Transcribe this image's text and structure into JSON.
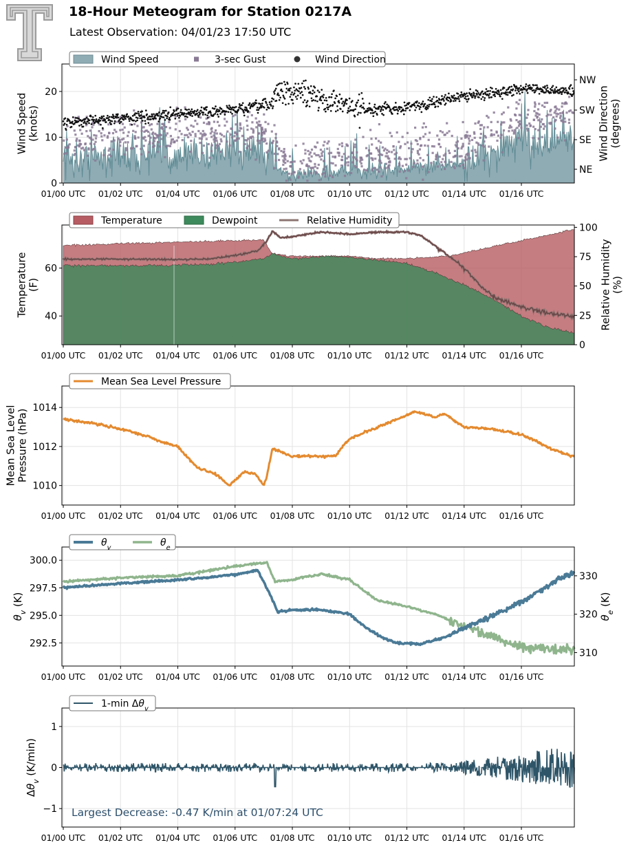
{
  "header": {
    "title": "18-Hour Meteogram for Station 0217A",
    "subtitle": "Latest Observation: 04/01/23 17:50 UTC"
  },
  "colors": {
    "wind_speed": "#8fabb3",
    "wind_speed_line": "#5f8b94",
    "gust": "#8a7a95",
    "wind_dir": "#111111",
    "temperature": "#b65c62",
    "dewpoint": "#3d8a5c",
    "rh": "#8c7471",
    "mslp": "#e48a2f",
    "theta_v": "#4a7a96",
    "theta_e": "#8fb58d",
    "dtheta": "#2e5568",
    "annotation": "#2b4e6b"
  },
  "chart_data": [
    {
      "type": "area",
      "id": "wind",
      "ylabel": "Wind Speed\n(knots)",
      "ylabel_right": "Wind Direction\n(degrees)",
      "ylim": [
        0,
        26
      ],
      "yticks": [
        0,
        10,
        20
      ],
      "ytick_labels": [
        "0",
        "10",
        "20"
      ],
      "y2_tick_labels": [
        "NE",
        "SE",
        "SW",
        "NW"
      ],
      "xlabels": [
        "01/00 UTC",
        "01/02 UTC",
        "01/04 UTC",
        "01/06 UTC",
        "01/08 UTC",
        "01/10 UTC",
        "01/12 UTC",
        "01/14 UTC",
        "01/16 UTC"
      ],
      "legend": [
        "Wind Speed",
        "3-sec Gust",
        "Wind Direction"
      ],
      "legend_position": "top-left",
      "grid": true,
      "series": [
        {
          "key": "speed_mean",
          "points": [
            [
              0,
              5
            ],
            [
              2,
              6
            ],
            [
              4,
              6.5
            ],
            [
              6,
              6.5
            ],
            [
              7.3,
              6
            ],
            [
              7.8,
              1.8
            ],
            [
              9,
              2
            ],
            [
              10,
              2.4
            ],
            [
              12,
              3.2
            ],
            [
              14,
              4
            ],
            [
              15,
              6.5
            ],
            [
              16,
              8.5
            ],
            [
              17.8,
              9
            ]
          ]
        },
        {
          "key": "gust_mean",
          "points": [
            [
              0,
              9
            ],
            [
              2,
              10.5
            ],
            [
              4,
              11
            ],
            [
              6,
              11
            ],
            [
              7.3,
              10
            ],
            [
              7.8,
              4
            ],
            [
              9,
              4.5
            ],
            [
              10,
              5.5
            ],
            [
              12,
              7
            ],
            [
              14,
              8
            ],
            [
              15,
              11
            ],
            [
              16,
              14
            ],
            [
              17.8,
              15
            ]
          ]
        },
        {
          "key": "direction_mean",
          "points": [
            [
              0,
              13
            ],
            [
              2,
              14.2
            ],
            [
              4,
              15
            ],
            [
              6,
              16
            ],
            [
              7.2,
              17
            ],
            [
              7.5,
              20
            ],
            [
              8.5,
              19.5
            ],
            [
              9.5,
              17.5
            ],
            [
              10.5,
              16
            ],
            [
              12,
              16.5
            ],
            [
              14,
              19
            ],
            [
              16,
              20.5
            ],
            [
              17.8,
              20
            ]
          ]
        }
      ]
    },
    {
      "type": "area",
      "id": "temperature",
      "ylabel": "Temperature\n(F)",
      "ylabel_right": "Relative Humidity\n(%)",
      "ylim": [
        28,
        78
      ],
      "yticks": [
        40,
        60
      ],
      "ytick_labels": [
        "40",
        "60"
      ],
      "y2lim": [
        0,
        102
      ],
      "y2ticks": [
        0,
        25,
        50,
        75,
        100
      ],
      "y2_tick_labels": [
        "0",
        "25",
        "50",
        "75",
        "100"
      ],
      "xlabels": [
        "01/00 UTC",
        "01/02 UTC",
        "01/04 UTC",
        "01/06 UTC",
        "01/08 UTC",
        "01/10 UTC",
        "01/12 UTC",
        "01/14 UTC",
        "01/16 UTC"
      ],
      "legend": [
        "Temperature",
        "Dewpoint",
        "Relative Humidity"
      ],
      "legend_position": "top-left",
      "grid": true,
      "series": [
        {
          "name": "Temperature",
          "points": [
            [
              0,
              69.5
            ],
            [
              3,
              70.5
            ],
            [
              6,
              71.5
            ],
            [
              7,
              71.8
            ],
            [
              7.3,
              66
            ],
            [
              8,
              65
            ],
            [
              10,
              65
            ],
            [
              11,
              64
            ],
            [
              12,
              64
            ],
            [
              13.5,
              65
            ],
            [
              15,
              69
            ],
            [
              17.8,
              76
            ]
          ]
        },
        {
          "name": "Dewpoint",
          "points": [
            [
              0,
              61
            ],
            [
              3,
              61
            ],
            [
              5,
              61.5
            ],
            [
              6,
              62.5
            ],
            [
              7,
              64
            ],
            [
              7.3,
              66
            ],
            [
              8,
              64
            ],
            [
              9.5,
              65
            ],
            [
              10.5,
              64
            ],
            [
              12,
              62
            ],
            [
              13,
              58
            ],
            [
              14,
              53
            ],
            [
              15,
              47
            ],
            [
              16,
              40
            ],
            [
              17,
              35
            ],
            [
              17.8,
              33
            ]
          ]
        },
        {
          "name": "Relative Humidity",
          "points": [
            [
              0,
              73
            ],
            [
              2,
              73
            ],
            [
              4,
              72.5
            ],
            [
              5,
              73
            ],
            [
              6,
              76
            ],
            [
              6.8,
              80
            ],
            [
              7.1,
              88
            ],
            [
              7.3,
              97
            ],
            [
              7.6,
              91
            ],
            [
              8,
              92
            ],
            [
              9,
              96
            ],
            [
              10,
              94
            ],
            [
              11,
              96
            ],
            [
              12,
              96
            ],
            [
              12.5,
              93
            ],
            [
              13,
              84
            ],
            [
              13.5,
              75
            ],
            [
              14,
              65
            ],
            [
              14.5,
              52
            ],
            [
              15,
              41
            ],
            [
              16,
              32
            ],
            [
              17,
              27
            ],
            [
              17.8,
              24
            ]
          ]
        }
      ]
    },
    {
      "type": "line",
      "id": "pressure",
      "ylabel": "Mean Sea Level\nPressure (hPa)",
      "ylim": [
        1009,
        1015.1
      ],
      "yticks": [
        1010,
        1012,
        1014
      ],
      "ytick_labels": [
        "1010",
        "1012",
        "1014"
      ],
      "xlabels": [
        "01/00 UTC",
        "01/02 UTC",
        "01/04 UTC",
        "01/06 UTC",
        "01/08 UTC",
        "01/10 UTC",
        "01/12 UTC",
        "01/14 UTC",
        "01/16 UTC"
      ],
      "legend": [
        "Mean Sea Level Pressure"
      ],
      "legend_position": "top-left",
      "grid": true,
      "series": [
        {
          "name": "Mean Sea Level Pressure",
          "points": [
            [
              0,
              1013.4
            ],
            [
              1,
              1013.2
            ],
            [
              2,
              1012.9
            ],
            [
              3,
              1012.5
            ],
            [
              3.5,
              1012.2
            ],
            [
              4,
              1012
            ],
            [
              4.3,
              1011.5
            ],
            [
              4.7,
              1010.9
            ],
            [
              5.3,
              1010.6
            ],
            [
              5.8,
              1010
            ],
            [
              6.3,
              1010.7
            ],
            [
              6.7,
              1010.6
            ],
            [
              7,
              1010
            ],
            [
              7.1,
              1010.4
            ],
            [
              7.3,
              1011.9
            ],
            [
              8,
              1011.5
            ],
            [
              9,
              1011.5
            ],
            [
              9.5,
              1011.5
            ],
            [
              10,
              1012.4
            ],
            [
              11,
              1013
            ],
            [
              12,
              1013.6
            ],
            [
              12.3,
              1013.8
            ],
            [
              13,
              1013.5
            ],
            [
              13.3,
              1013.7
            ],
            [
              14,
              1013
            ],
            [
              15,
              1012.9
            ],
            [
              16,
              1012.6
            ],
            [
              16.5,
              1012.3
            ],
            [
              17,
              1011.9
            ],
            [
              17.8,
              1011.5
            ]
          ]
        }
      ]
    },
    {
      "type": "line",
      "id": "theta",
      "ylabel": "θv (K)",
      "ylabel_right": "θe (K)",
      "ylim": [
        290.4,
        301.2
      ],
      "yticks": [
        292.5,
        295.0,
        297.5,
        300.0
      ],
      "ytick_labels": [
        "292.5",
        "295.0",
        "297.5",
        "300.0"
      ],
      "y2lim": [
        306.5,
        337.5
      ],
      "y2ticks": [
        310,
        320,
        330
      ],
      "y2_tick_labels": [
        "310",
        "320",
        "330"
      ],
      "xlabels": [
        "01/00 UTC",
        "01/02 UTC",
        "01/04 UTC",
        "01/06 UTC",
        "01/08 UTC",
        "01/10 UTC",
        "01/12 UTC",
        "01/14 UTC",
        "01/16 UTC"
      ],
      "legend": [
        "θv",
        "θe"
      ],
      "legend_position": "top-left",
      "grid": true,
      "series": [
        {
          "name": "θv",
          "points": [
            [
              0,
              297.5
            ],
            [
              2,
              297.9
            ],
            [
              4,
              298.2
            ],
            [
              6,
              298.7
            ],
            [
              6.8,
              299.1
            ],
            [
              7.2,
              297
            ],
            [
              7.5,
              295.3
            ],
            [
              8,
              295.5
            ],
            [
              9,
              295.5
            ],
            [
              10,
              295.1
            ],
            [
              10.5,
              294
            ],
            [
              11,
              293.2
            ],
            [
              11.6,
              292.5
            ],
            [
              12.5,
              292.4
            ],
            [
              13.3,
              293
            ],
            [
              14,
              293.8
            ],
            [
              15,
              295
            ],
            [
              16,
              296.2
            ],
            [
              17,
              297.8
            ],
            [
              17.8,
              298.9
            ]
          ]
        },
        {
          "name": "θe",
          "points": [
            [
              0,
              328.5
            ],
            [
              2,
              329.5
            ],
            [
              4,
              330
            ],
            [
              6,
              332.5
            ],
            [
              7.1,
              333.5
            ],
            [
              7.4,
              328.5
            ],
            [
              8,
              329
            ],
            [
              9,
              330.5
            ],
            [
              10,
              329
            ],
            [
              10.5,
              326
            ],
            [
              11,
              323.5
            ],
            [
              12,
              322
            ],
            [
              13,
              320
            ],
            [
              14,
              317
            ],
            [
              15,
              314
            ],
            [
              16,
              311.5
            ],
            [
              17,
              311
            ],
            [
              17.8,
              311
            ]
          ]
        }
      ]
    },
    {
      "type": "line",
      "id": "dtheta",
      "ylabel": "Δθv (K/min)",
      "ylim": [
        -1.45,
        1.45
      ],
      "yticks": [
        -1,
        0,
        1
      ],
      "ytick_labels": [
        "−1",
        "0",
        "1"
      ],
      "xlabels": [
        "01/00 UTC",
        "01/02 UTC",
        "01/04 UTC",
        "01/06 UTC",
        "01/08 UTC",
        "01/10 UTC",
        "01/12 UTC",
        "01/14 UTC",
        "01/16 UTC"
      ],
      "legend": [
        "1-min Δθv"
      ],
      "legend_position": "top-left",
      "grid": true,
      "annotation": "Largest Decrease: -0.47 K/min at 01/07:24 UTC",
      "series": [
        {
          "name": "1-min Δθv",
          "min_value": -0.47,
          "min_time": 7.4
        }
      ]
    }
  ]
}
